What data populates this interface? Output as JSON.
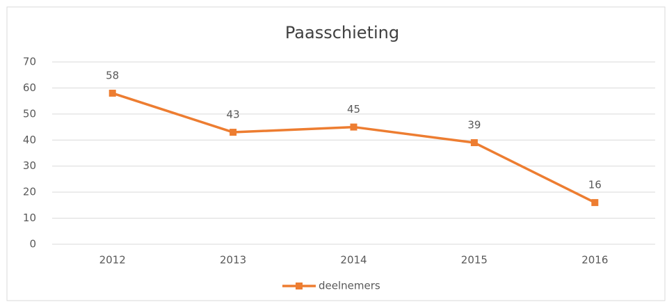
{
  "chart_data": {
    "type": "line",
    "title": "Paasschieting",
    "categories": [
      "2012",
      "2013",
      "2014",
      "2015",
      "2016"
    ],
    "series": [
      {
        "name": "deelnemers",
        "color": "#ed7d31",
        "values": [
          58,
          43,
          45,
          39,
          16
        ]
      }
    ],
    "ylim": [
      0,
      70
    ],
    "yticks": [
      0,
      10,
      20,
      30,
      40,
      50,
      60,
      70
    ],
    "grid": true,
    "legend": "bottom"
  }
}
